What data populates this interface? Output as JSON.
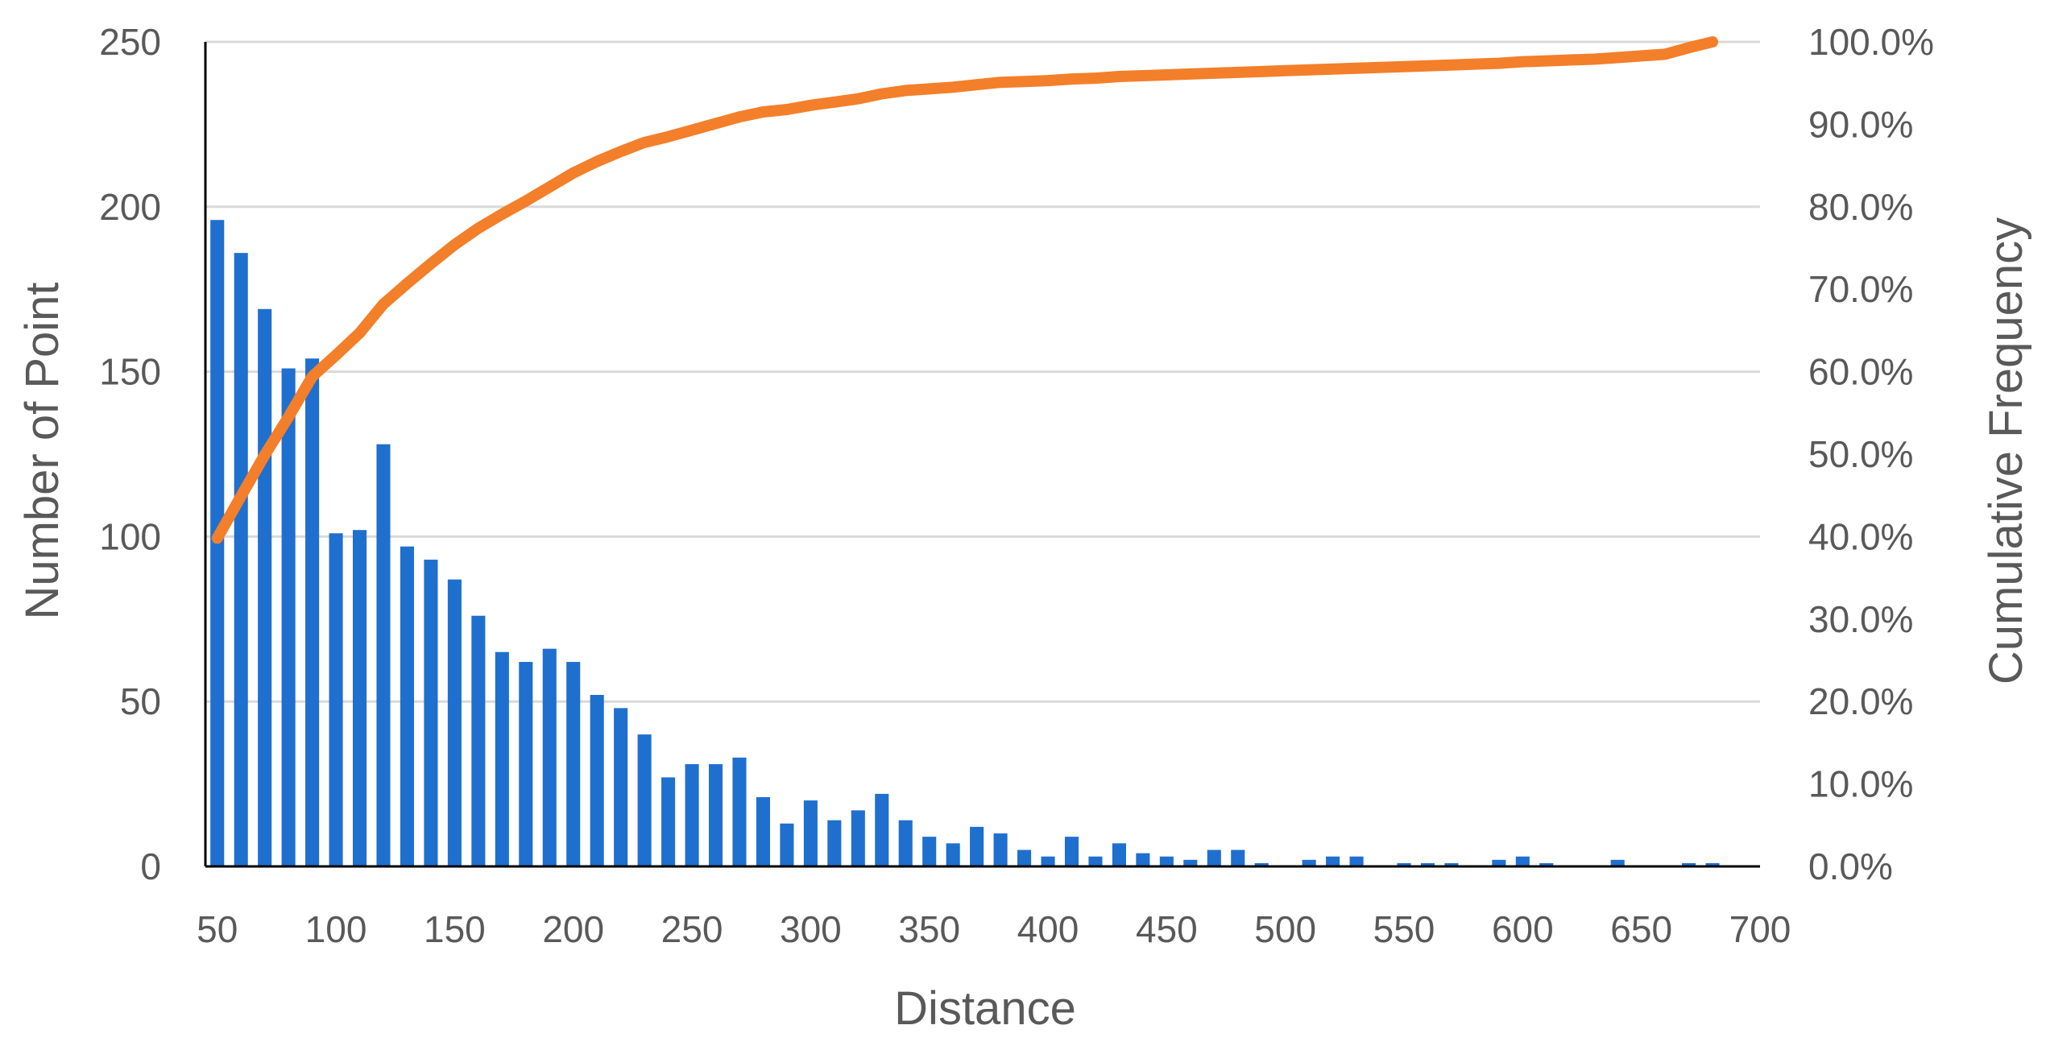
{
  "chart_data": {
    "type": "bar",
    "xlabel": "Distance",
    "ylabel": "Number of Point",
    "y2label": "Cumulative Frequency",
    "ylim": [
      0,
      250
    ],
    "y2lim": [
      0,
      1
    ],
    "xlim": [
      45,
      700
    ],
    "grid": true,
    "colors": {
      "bars": "#1f6fcf",
      "line": "#f37f2a",
      "grid": "#d9d9d9",
      "axis": "#000000",
      "text": "#595959"
    },
    "x_ticks": [
      "50",
      "100",
      "150",
      "200",
      "250",
      "300",
      "350",
      "400",
      "450",
      "500",
      "550",
      "600",
      "650",
      "700"
    ],
    "y_ticks": [
      "0",
      "50",
      "100",
      "150",
      "200",
      "250"
    ],
    "y2_ticks": [
      "0.0%",
      "10.0%",
      "20.0%",
      "30.0%",
      "40.0%",
      "50.0%",
      "60.0%",
      "70.0%",
      "80.0%",
      "90.0%",
      "100.0%"
    ],
    "series": [
      {
        "type": "bar",
        "x": [
          50,
          60,
          70,
          80,
          90,
          100,
          110,
          120,
          130,
          140,
          150,
          160,
          170,
          180,
          190,
          200,
          210,
          220,
          230,
          240,
          250,
          260,
          270,
          280,
          290,
          300,
          310,
          320,
          330,
          340,
          350,
          360,
          370,
          380,
          390,
          400,
          410,
          420,
          430,
          440,
          450,
          460,
          470,
          480,
          490,
          500,
          510,
          520,
          530,
          540,
          550,
          560,
          570,
          580,
          590,
          600,
          610,
          620,
          630,
          640,
          650,
          660,
          670,
          680
        ],
        "values": [
          196,
          186,
          169,
          151,
          154,
          101,
          102,
          128,
          97,
          93,
          87,
          76,
          65,
          62,
          66,
          62,
          52,
          48,
          40,
          27,
          31,
          31,
          33,
          21,
          13,
          20,
          14,
          17,
          22,
          14,
          9,
          7,
          12,
          10,
          5,
          3,
          9,
          3,
          7,
          4,
          3,
          2,
          5,
          5,
          1,
          0,
          2,
          3,
          3,
          0,
          1,
          1,
          1,
          0,
          2,
          3,
          1,
          0,
          0,
          2,
          0,
          0,
          1,
          1
        ]
      },
      {
        "type": "line",
        "x": [
          50,
          60,
          70,
          80,
          90,
          100,
          110,
          120,
          130,
          140,
          150,
          160,
          170,
          180,
          190,
          200,
          210,
          220,
          230,
          240,
          250,
          260,
          270,
          280,
          290,
          300,
          310,
          320,
          330,
          340,
          350,
          360,
          370,
          380,
          390,
          400,
          410,
          420,
          430,
          440,
          450,
          460,
          470,
          480,
          490,
          500,
          510,
          520,
          530,
          540,
          550,
          560,
          570,
          580,
          590,
          600,
          610,
          620,
          630,
          640,
          650,
          660,
          670,
          680
        ],
        "values": [
          0.398,
          0.449,
          0.499,
          0.545,
          0.594,
          0.62,
          0.647,
          0.682,
          0.707,
          0.731,
          0.754,
          0.774,
          0.791,
          0.807,
          0.824,
          0.841,
          0.855,
          0.867,
          0.878,
          0.885,
          0.893,
          0.901,
          0.909,
          0.915,
          0.918,
          0.923,
          0.927,
          0.931,
          0.937,
          0.941,
          0.943,
          0.945,
          0.948,
          0.951,
          0.952,
          0.953,
          0.955,
          0.956,
          0.958,
          0.959,
          0.96,
          0.961,
          0.962,
          0.963,
          0.964,
          0.965,
          0.966,
          0.967,
          0.968,
          0.969,
          0.97,
          0.971,
          0.972,
          0.973,
          0.974,
          0.976,
          0.977,
          0.978,
          0.979,
          0.981,
          0.983,
          0.985,
          0.993,
          1.0
        ]
      }
    ]
  }
}
